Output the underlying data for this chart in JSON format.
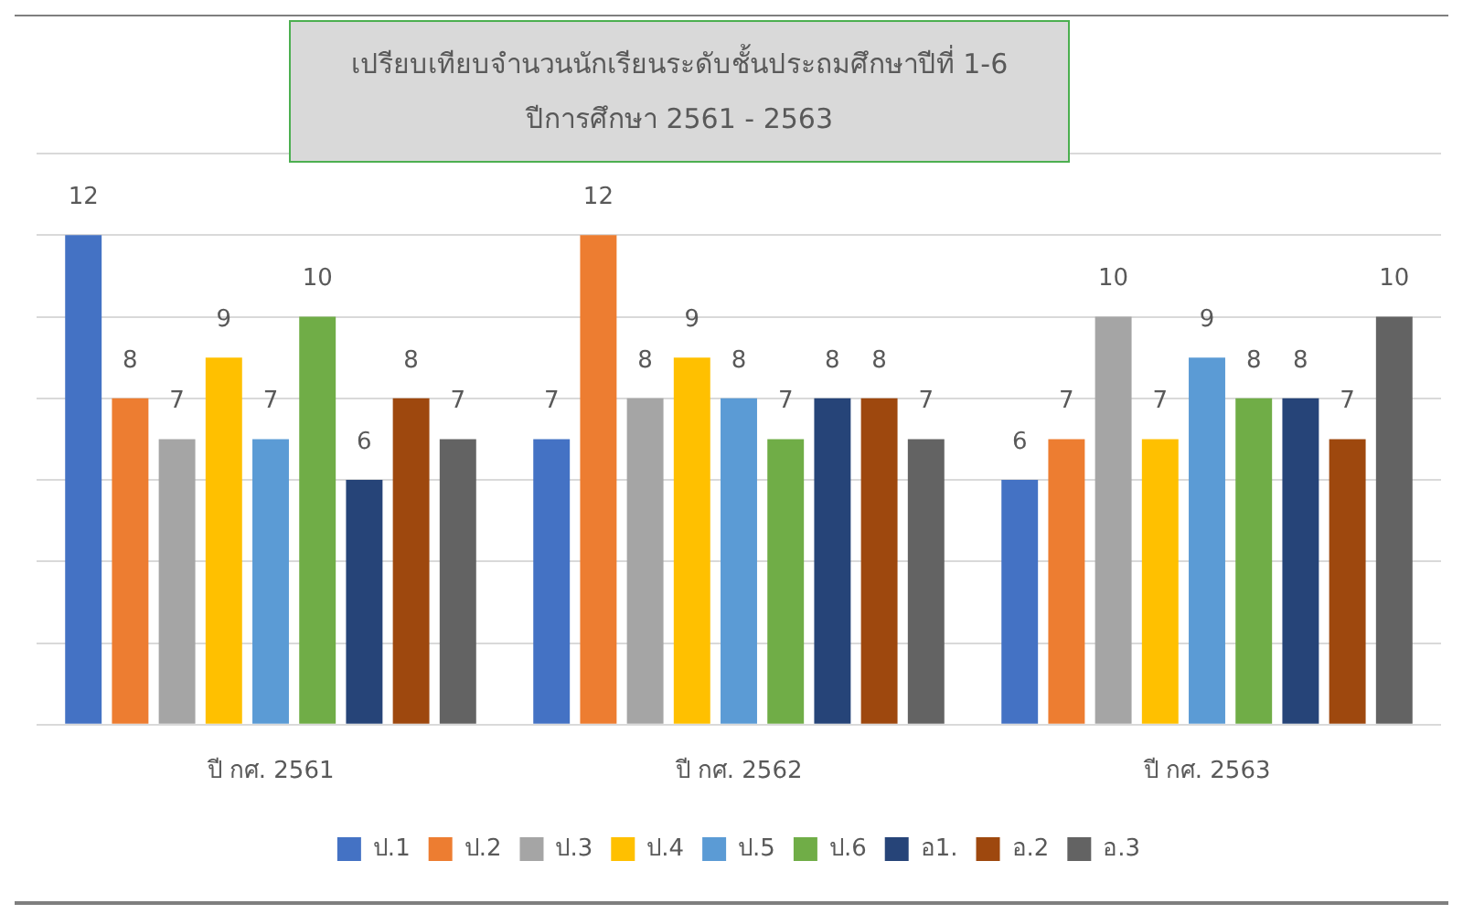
{
  "chart_data": {
    "type": "bar",
    "title": "เปรียบเทียบจำนวนนักเรียนระดับชั้นประถมศึกษาปีที่ 1-6",
    "subtitle": "ปีการศึกษา 2561 - 2563",
    "categories": [
      "ปี กศ. 2561",
      "ปี กศ. 2562",
      "ปี กศ. 2563"
    ],
    "series": [
      {
        "name": "ป.1",
        "color": "#4472c4",
        "values": [
          12,
          7,
          6
        ]
      },
      {
        "name": "ป.2",
        "color": "#ed7d31",
        "values": [
          8,
          12,
          7
        ]
      },
      {
        "name": "ป.3",
        "color": "#a5a5a5",
        "values": [
          7,
          8,
          10
        ]
      },
      {
        "name": "ป.4",
        "color": "#ffc000",
        "values": [
          9,
          9,
          7
        ]
      },
      {
        "name": "ป.5",
        "color": "#5b9bd5",
        "values": [
          7,
          8,
          9
        ]
      },
      {
        "name": "ป.6",
        "color": "#70ad47",
        "values": [
          10,
          7,
          8
        ]
      },
      {
        "name": "อ1.",
        "color": "#264478",
        "values": [
          6,
          8,
          8
        ]
      },
      {
        "name": "อ.2",
        "color": "#9e480e",
        "values": [
          8,
          8,
          7
        ]
      },
      {
        "name": "อ.3",
        "color": "#636363",
        "values": [
          7,
          7,
          10
        ]
      }
    ],
    "ylim": [
      0,
      14
    ],
    "yticks": [
      0,
      2,
      4,
      6,
      8,
      10,
      12,
      14
    ],
    "tick_labels": "x",
    "grid": "y",
    "legend": "bottom",
    "data_labels": true
  }
}
